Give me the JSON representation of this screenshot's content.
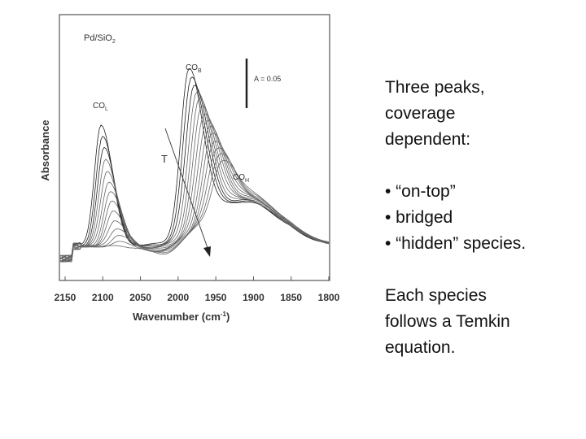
{
  "figure": {
    "sample": "Pd/SiO",
    "sample_sub": "2",
    "peaks": [
      {
        "main": "CO",
        "sub": "B"
      },
      {
        "main": "CO",
        "sub": "L"
      },
      {
        "main": "CO",
        "sub": "H"
      }
    ],
    "scale_bar": "A = 0.05",
    "arrow_label": "T",
    "y_label": "Absorbance",
    "x_label": "Wavenumber (cm",
    "x_label_sup": "-1",
    "x_label_end": ")",
    "xticks": [
      "2150",
      "2100",
      "2050",
      "2000",
      "1950",
      "1900",
      "1850",
      "1800"
    ]
  },
  "text": {
    "paragraphs": [
      [
        "Three peaks,",
        "coverage",
        "dependent:"
      ],
      [
        "• “on-top”",
        "• bridged",
        "• “hidden” species."
      ],
      [
        "Each species",
        "follows a Temkin",
        "equation."
      ]
    ]
  }
}
